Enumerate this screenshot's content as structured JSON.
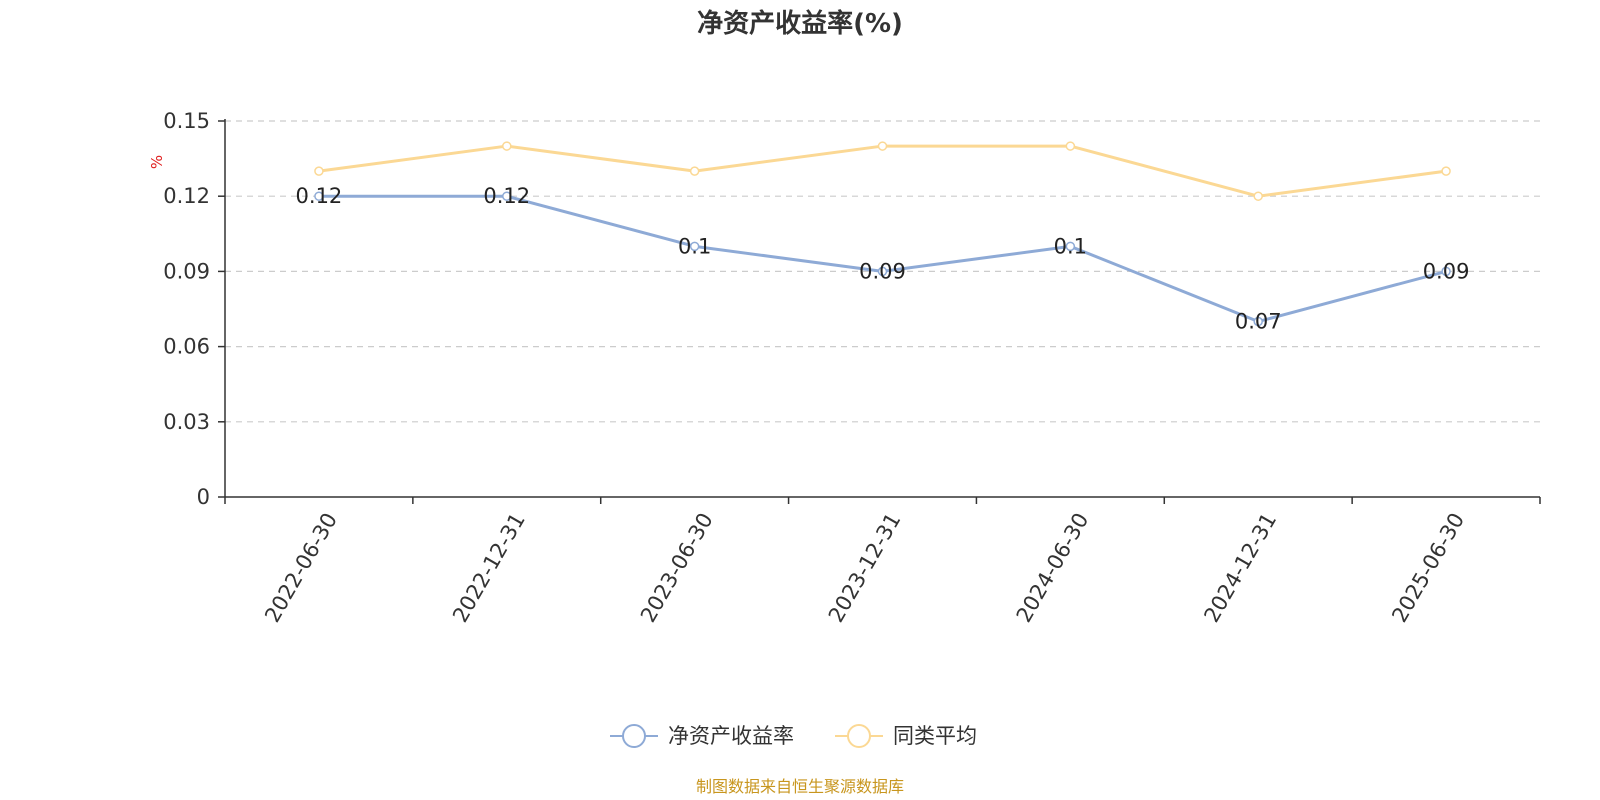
{
  "chart_data": {
    "type": "line",
    "title": "净资产收益率(%)",
    "unit_label": "%",
    "categories": [
      "2022-06-30",
      "2022-12-31",
      "2023-06-30",
      "2023-12-31",
      "2024-06-30",
      "2024-12-31",
      "2025-06-30"
    ],
    "ylim": [
      0,
      0.15
    ],
    "yticks": [
      "0",
      "0.03",
      "0.06",
      "0.09",
      "0.12",
      "0.15"
    ],
    "grid": true,
    "legend_position": "bottom",
    "series": [
      {
        "name": "净资产收益率",
        "color": "#8eaad6",
        "values": [
          0.12,
          0.12,
          0.1,
          0.09,
          0.1,
          0.07,
          0.09
        ],
        "labels": [
          "0.12",
          "0.12",
          "0.1",
          "0.09",
          "0.1",
          "0.07",
          "0.09"
        ]
      },
      {
        "name": "同类平均",
        "color": "#fbd894",
        "values": [
          0.13,
          0.14,
          0.13,
          0.14,
          0.14,
          0.12,
          0.13
        ]
      }
    ]
  },
  "source_text": "制图数据来自恒生聚源数据库"
}
